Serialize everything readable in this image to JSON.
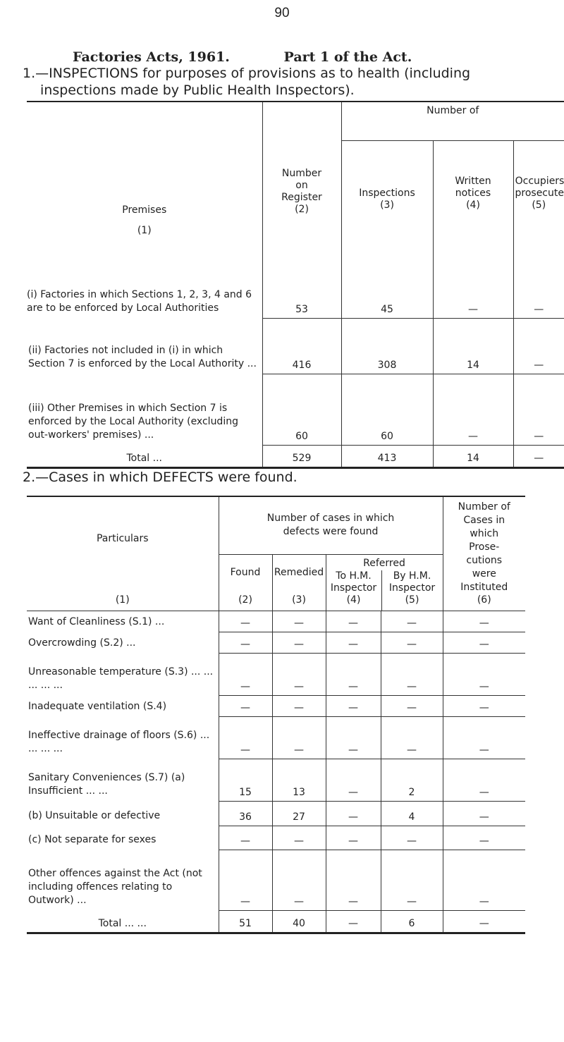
{
  "page_number": "90",
  "heading": {
    "part1": "Factories Acts, 1961.",
    "part2": "Part 1 of the Act."
  },
  "section1": {
    "title_line1": "1.—INSPECTIONS for purposes of provisions as to health (including",
    "title_line2": "inspections made by Public Health Inspectors).",
    "headers": {
      "premises": "Premises",
      "premises_no": "(1)",
      "register": "Number on Register",
      "register_no": "(2)",
      "number_of": "Number of",
      "inspections": "Inspections",
      "inspections_no": "(3)",
      "written": "Written notices",
      "written_no": "(4)",
      "occupiers": "Occupiers prosecuted",
      "occupiers_no": "(5)"
    },
    "rows": [
      {
        "label": "(i) Factories in which Sections 1, 2, 3, 4 and 6 are to be enforced by Local Authorities",
        "register": "53",
        "inspections": "45",
        "written": "—",
        "occupiers": "—"
      },
      {
        "label": "(ii) Factories not included in (i) in which Section 7 is enforced by the Local Authority ...",
        "register": "416",
        "inspections": "308",
        "written": "14",
        "occupiers": "—"
      },
      {
        "label": "(iii) Other Premises in which Section 7 is enforced by the Local Authority (excluding out-workers' premises) ...",
        "register": "60",
        "inspections": "60",
        "written": "—",
        "occupiers": "—"
      }
    ],
    "total": {
      "label": "Total ...",
      "register": "529",
      "inspections": "413",
      "written": "14",
      "occupiers": "—"
    }
  },
  "section2": {
    "title": "2.—Cases in which DEFECTS were found.",
    "headers": {
      "particulars": "Particulars",
      "particulars_no": "(1)",
      "number_cases": "Number of cases in which defects were found",
      "found": "Found",
      "found_no": "(2)",
      "remedied": "Remedied",
      "remedied_no": "(3)",
      "referred": "Referred",
      "to_hm": "To H.M. Inspector",
      "to_hm_no": "(4)",
      "by_hm": "By H.M. Inspector",
      "by_hm_no": "(5)",
      "prosecutions": "Number of Cases in which Prose-cutions were Instituted",
      "prosecutions_no": "(6)"
    },
    "rows": [
      {
        "label": "Want of Cleanliness (S.1) ...",
        "c": [
          "—",
          "—",
          "—",
          "—",
          "—"
        ]
      },
      {
        "label": "Overcrowding (S.2) ...",
        "c": [
          "—",
          "—",
          "—",
          "—",
          "—"
        ]
      },
      {
        "label": "Unreasonable temperature (S.3) ... ... ... ... ...",
        "c": [
          "—",
          "—",
          "—",
          "—",
          "—"
        ]
      },
      {
        "label": "Inadequate ventilation (S.4)",
        "c": [
          "—",
          "—",
          "—",
          "—",
          "—"
        ]
      },
      {
        "label": "Ineffective drainage of floors (S.6) ... ... ... ...",
        "c": [
          "—",
          "—",
          "—",
          "—",
          "—"
        ]
      },
      {
        "label": "Sanitary Conveniences (S.7) (a) Insufficient ... ...",
        "c": [
          "15",
          "13",
          "—",
          "2",
          "—"
        ]
      },
      {
        "label": "(b) Unsuitable or defective",
        "c": [
          "36",
          "27",
          "—",
          "4",
          "—"
        ]
      },
      {
        "label": "(c) Not separate for sexes",
        "c": [
          "—",
          "—",
          "—",
          "—",
          "—"
        ]
      },
      {
        "label": "Other offences against the Act (not including offences relating to Outwork) ...",
        "c": [
          "—",
          "—",
          "—",
          "—",
          "—"
        ]
      }
    ],
    "total": {
      "label": "Total ... ...",
      "c": [
        "51",
        "40",
        "—",
        "6",
        "—"
      ]
    }
  }
}
